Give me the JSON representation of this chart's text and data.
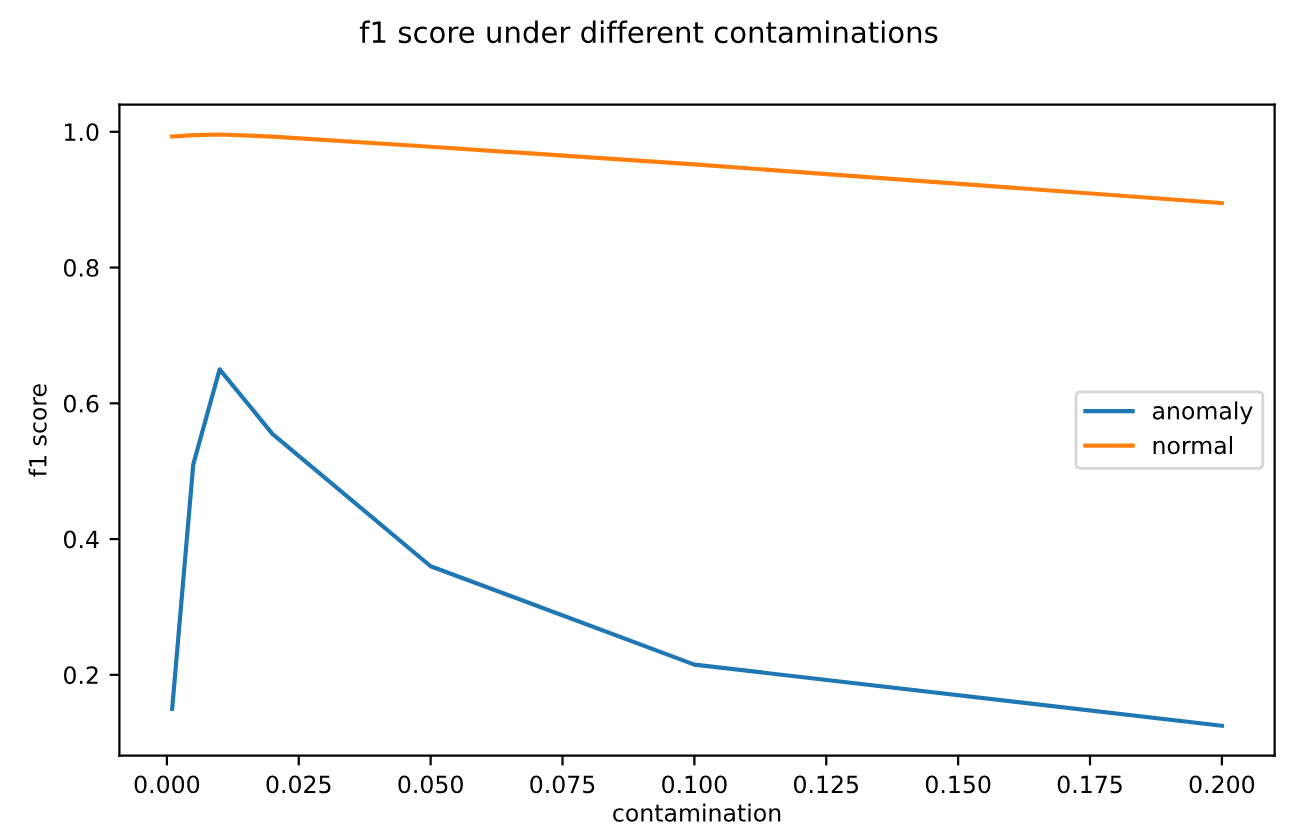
{
  "chart_data": {
    "type": "line",
    "title": "f1 score under different contaminations",
    "xlabel": "contamination",
    "ylabel": "f1 score",
    "x": [
      0.001,
      0.005,
      0.01,
      0.02,
      0.05,
      0.1,
      0.2
    ],
    "series": [
      {
        "name": "anomaly",
        "color": "#1f77b4",
        "values": [
          0.15,
          0.51,
          0.65,
          0.555,
          0.36,
          0.215,
          0.125
        ]
      },
      {
        "name": "normal",
        "color": "#ff7f0e",
        "values": [
          0.993,
          0.995,
          0.996,
          0.993,
          0.978,
          0.952,
          0.895
        ]
      }
    ],
    "xlim": [
      -0.009,
      0.21
    ],
    "ylim": [
      0.081,
      1.04
    ],
    "xticks": [
      {
        "value": 0.0,
        "label": "0.000"
      },
      {
        "value": 0.025,
        "label": "0.025"
      },
      {
        "value": 0.05,
        "label": "0.050"
      },
      {
        "value": 0.075,
        "label": "0.075"
      },
      {
        "value": 0.1,
        "label": "0.100"
      },
      {
        "value": 0.125,
        "label": "0.125"
      },
      {
        "value": 0.15,
        "label": "0.150"
      },
      {
        "value": 0.175,
        "label": "0.175"
      },
      {
        "value": 0.2,
        "label": "0.200"
      }
    ],
    "yticks": [
      0.2,
      0.4,
      0.6,
      0.8,
      {
        "value": 1.0,
        "label": "1.0"
      }
    ],
    "legend": "center right",
    "grid": false
  }
}
